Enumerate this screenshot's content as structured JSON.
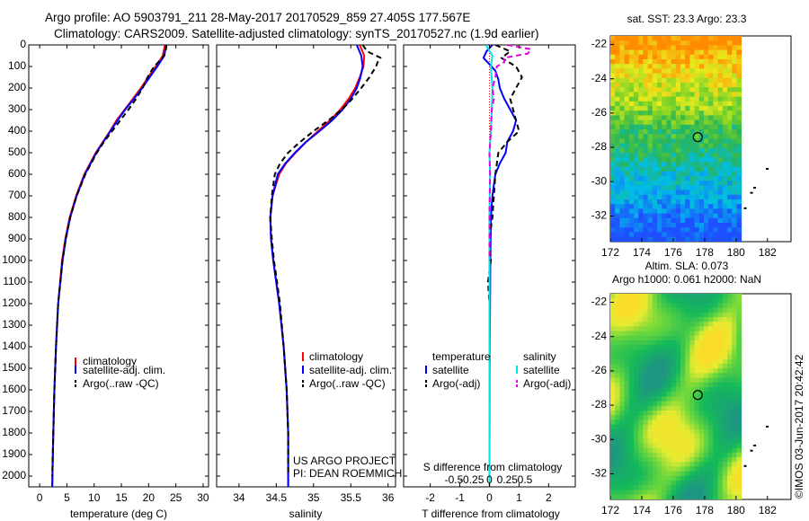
{
  "header": {
    "line1": "Argo profile: AO 5903791_211 28-May-2017 20170529_859 27.405S 177.567E",
    "line2": "Climatology: CARS2009. Satellite-adjusted climatology: synTS_20170527.nc (1.9d earlier)"
  },
  "colors": {
    "climatology": "#ff0000",
    "satellite": "#0000ff",
    "argo": "#000000",
    "salinity_satellite": "#00e5e5",
    "salinity_argo": "#e600e6"
  },
  "chart_data": [
    {
      "id": "temperature",
      "type": "line",
      "xlabel": "temperature (deg C)",
      "ylabel": "",
      "xlim": [
        -2,
        31
      ],
      "ylim": [
        2050,
        0
      ],
      "xticks": [
        0,
        5,
        10,
        15,
        20,
        25,
        30
      ],
      "yticks": [
        0,
        100,
        200,
        300,
        400,
        500,
        600,
        700,
        800,
        900,
        1000,
        1100,
        1200,
        1300,
        1400,
        1500,
        1600,
        1700,
        1800,
        1900,
        2000
      ],
      "legend": [
        "climatology",
        "satellite-adj. clim.",
        "Argo(..raw -QC)"
      ],
      "series": [
        {
          "name": "climatology",
          "color": "#ff0000",
          "dash": "",
          "depth": [
            0,
            50,
            100,
            150,
            200,
            250,
            300,
            350,
            400,
            450,
            500,
            600,
            700,
            800,
            900,
            1000,
            1200,
            1400,
            1600,
            1800,
            2050
          ],
          "values": [
            23.0,
            22.6,
            21.3,
            19.9,
            18.6,
            17.1,
            15.6,
            14.1,
            12.9,
            11.6,
            10.3,
            8.2,
            6.7,
            5.5,
            4.7,
            4.1,
            3.4,
            3.0,
            2.7,
            2.5,
            2.3
          ]
        },
        {
          "name": "satellite-adj. clim.",
          "color": "#0000ff",
          "dash": "",
          "depth": [
            0,
            50,
            100,
            150,
            200,
            250,
            300,
            350,
            400,
            450,
            500,
            600,
            700,
            800,
            900,
            1000,
            1200,
            1400,
            1600,
            1800,
            2050
          ],
          "values": [
            23.2,
            22.9,
            21.6,
            20.2,
            18.8,
            17.3,
            15.7,
            14.3,
            13.0,
            11.7,
            10.4,
            8.3,
            6.8,
            5.6,
            4.8,
            4.2,
            3.4,
            3.0,
            2.7,
            2.5,
            2.3
          ]
        },
        {
          "name": "Argo(..raw -QC)",
          "color": "#000000",
          "dash": "6,4",
          "depth": [
            0,
            20,
            50,
            80,
            100,
            150,
            200,
            250,
            300,
            350,
            400,
            450,
            500,
            600,
            700,
            800,
            900,
            1000,
            1200,
            1400,
            1600,
            1800,
            2000
          ],
          "values": [
            23.3,
            23.2,
            22.8,
            21.8,
            21.0,
            19.8,
            18.9,
            17.7,
            16.3,
            14.8,
            13.3,
            11.8,
            10.5,
            8.4,
            6.8,
            5.6,
            4.8,
            4.2,
            3.4,
            3.0,
            2.7,
            2.5,
            2.3
          ]
        }
      ]
    },
    {
      "id": "salinity",
      "type": "line",
      "xlabel": "salinity",
      "ylabel": "",
      "xlim": [
        33.7,
        36.1
      ],
      "ylim": [
        2050,
        0
      ],
      "xticks": [
        34,
        34.5,
        35,
        35.5,
        36
      ],
      "legend": [
        "climatology",
        "satellite-adj. clim.",
        "Argo(..raw -QC)"
      ],
      "series": [
        {
          "name": "climatology",
          "color": "#ff0000",
          "dash": "",
          "depth": [
            0,
            50,
            100,
            150,
            200,
            250,
            300,
            350,
            400,
            450,
            500,
            550,
            600,
            700,
            800,
            900,
            1000,
            1100,
            1200,
            1400,
            1600,
            1800,
            2050
          ],
          "values": [
            35.62,
            35.68,
            35.67,
            35.62,
            35.56,
            35.47,
            35.36,
            35.22,
            35.06,
            34.9,
            34.76,
            34.63,
            34.54,
            34.45,
            34.42,
            34.43,
            34.46,
            34.5,
            34.54,
            34.6,
            34.64,
            34.66,
            34.66
          ]
        },
        {
          "name": "satellite-adj. clim.",
          "color": "#0000ff",
          "dash": "",
          "depth": [
            0,
            50,
            100,
            150,
            200,
            250,
            300,
            350,
            400,
            450,
            500,
            550,
            600,
            700,
            800,
            900,
            1000,
            1100,
            1200,
            1400,
            1600,
            1800,
            2050
          ],
          "values": [
            35.58,
            35.64,
            35.66,
            35.63,
            35.58,
            35.5,
            35.39,
            35.25,
            35.08,
            34.9,
            34.75,
            34.62,
            34.52,
            34.45,
            34.42,
            34.43,
            34.46,
            34.5,
            34.54,
            34.6,
            34.64,
            34.66,
            34.66
          ]
        },
        {
          "name": "Argo(..raw -QC)",
          "color": "#000000",
          "dash": "6,4",
          "depth": [
            0,
            30,
            60,
            80,
            100,
            150,
            200,
            250,
            300,
            350,
            400,
            450,
            500,
            550,
            600,
            700,
            800,
            900,
            1000,
            1100,
            1200,
            1400,
            1600,
            1800,
            2000
          ],
          "values": [
            35.66,
            35.72,
            35.9,
            35.86,
            35.84,
            35.75,
            35.64,
            35.52,
            35.38,
            35.2,
            35.0,
            34.82,
            34.66,
            34.55,
            34.48,
            34.44,
            34.42,
            34.44,
            34.47,
            34.51,
            34.55,
            34.6,
            34.64,
            34.66,
            34.66
          ]
        }
      ]
    },
    {
      "id": "differences",
      "type": "line",
      "xlabel": "T difference from climatology",
      "xlabel_top": "S difference from climatology",
      "xlim": [
        -2.9,
        2.9
      ],
      "ylim": [
        2050,
        0
      ],
      "xticks": [
        -2,
        -1,
        0,
        1,
        2
      ],
      "xticks_s": [
        -0.5,
        -0.25,
        0,
        0.25,
        0.5
      ],
      "legend": {
        "temperature": "temperature",
        "salinity": "salinity",
        "t_sat": "satellite",
        "t_argo": "Argo(-adj)",
        "s_sat": "satellite",
        "s_argo": "Argo(-adj)"
      },
      "series": [
        {
          "name": "T satellite",
          "color": "#0000ff",
          "dash": "",
          "depth": [
            0,
            30,
            60,
            90,
            120,
            160,
            200,
            250,
            300,
            350,
            400,
            450,
            500,
            550,
            600,
            700,
            800,
            1000,
            1200,
            1400,
            2050
          ],
          "values": [
            0.1,
            -0.1,
            -0.2,
            0.0,
            0.2,
            0.3,
            0.35,
            0.5,
            0.7,
            0.9,
            0.8,
            0.6,
            0.55,
            0.35,
            0.2,
            0.1,
            0.05,
            0.03,
            0.02,
            0.01,
            0.0
          ]
        },
        {
          "name": "T Argo",
          "color": "#000000",
          "dash": "6,4",
          "depth": [
            0,
            30,
            60,
            100,
            150,
            200,
            250,
            300,
            350,
            400,
            450,
            500,
            600,
            700,
            800,
            900,
            1000,
            1100,
            1200,
            1400,
            1600,
            2000
          ],
          "values": [
            0.2,
            0.7,
            0.4,
            0.9,
            1.1,
            0.9,
            0.7,
            0.8,
            0.9,
            1.0,
            0.6,
            0.3,
            0.2,
            0.15,
            0.1,
            0.0,
            0.05,
            -0.05,
            0.0,
            0.0,
            0.0,
            0.0
          ]
        },
        {
          "name": "S satellite",
          "color": "#00e5e5",
          "dash": "",
          "depth": [
            0,
            50,
            100,
            200,
            300,
            400,
            500,
            600,
            800,
            1000,
            1400,
            2050
          ],
          "values": [
            -0.12,
            0.1,
            0.05,
            0.1,
            0.08,
            0.05,
            0.0,
            0.02,
            0.0,
            0.0,
            0.0,
            0.0
          ]
        },
        {
          "name": "S Argo",
          "color": "#e600e6",
          "dash": "6,4",
          "depth": [
            0,
            20,
            40,
            60,
            80,
            100,
            150,
            200,
            250,
            300,
            400,
            500,
            600,
            800,
            1000
          ],
          "values": [
            0.6,
            1.4,
            1.3,
            0.5,
            0.5,
            0.25,
            0.2,
            0.1,
            0.15,
            0.08,
            0.05,
            0.0,
            0.02,
            0.0,
            0.0
          ]
        }
      ]
    },
    {
      "id": "sst-map",
      "type": "heatmap",
      "title": "sat. SST: 23.3  Argo: 23.3",
      "xticks": [
        172,
        174,
        176,
        178,
        180,
        182
      ],
      "yticks": [
        -22,
        -24,
        -26,
        -28,
        -30,
        -32
      ],
      "xlim": [
        172,
        183.5
      ],
      "ylim": [
        -33.5,
        -21.5
      ],
      "data_xlim": [
        172,
        180.2
      ],
      "marker": {
        "lon": 177.567,
        "lat": -27.405
      }
    },
    {
      "id": "sla-map",
      "type": "heatmap",
      "title_line1": "Altim. SLA: 0.073",
      "title_line2": "Argo h1000: 0.061  h2000: NaN",
      "xticks": [
        172,
        174,
        176,
        178,
        180,
        182
      ],
      "yticks": [
        -22,
        -24,
        -26,
        -28,
        -30,
        -32
      ],
      "xlim": [
        172,
        183.5
      ],
      "ylim": [
        -33.5,
        -21.5
      ],
      "data_xlim": [
        172,
        180.2
      ],
      "marker": {
        "lon": 177.567,
        "lat": -27.405
      }
    }
  ],
  "annotations": {
    "project_line1": "US ARGO PROJECT",
    "project_line2": "PI: DEAN ROEMMICH",
    "imos_stamp": "©IMOS 03-Jun-2017 20:42:42"
  }
}
